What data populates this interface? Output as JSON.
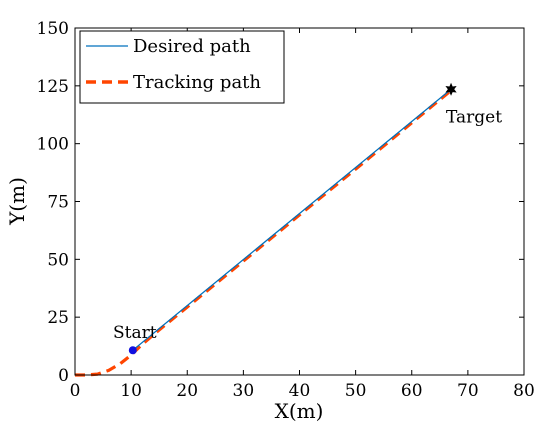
{
  "chart_data": {
    "type": "line",
    "xlabel": "X(m)",
    "ylabel": "Y(m)",
    "xlim": [
      0,
      80
    ],
    "ylim": [
      0,
      150
    ],
    "xticks": [
      0,
      10,
      20,
      30,
      40,
      50,
      60,
      70,
      80
    ],
    "yticks": [
      0,
      25,
      50,
      75,
      100,
      125,
      150
    ],
    "grid": false,
    "legend_position": "top-left",
    "series": [
      {
        "name": "Desired path",
        "style": "solid",
        "color": "#0072BD",
        "x": [
          10.3,
          67.0
        ],
        "y": [
          10.7,
          123.5
        ]
      },
      {
        "name": "Tracking path",
        "style": "dashed",
        "color": "#FF4500",
        "x": [
          0,
          2,
          4,
          6,
          8,
          10,
          12,
          15,
          20,
          30,
          40,
          50,
          60,
          67.0
        ],
        "y": [
          0,
          0,
          0.4,
          2.0,
          4.8,
          8.6,
          13.3,
          19.5,
          29.4,
          49.3,
          69.2,
          89.0,
          109.0,
          123.0
        ]
      }
    ],
    "annotations": [
      {
        "text": "Start",
        "x": 10.3,
        "y": 10.7,
        "marker": "circle",
        "color": "#1010E0"
      },
      {
        "text": "Target",
        "x": 67.0,
        "y": 123.5,
        "marker": "hexagram",
        "color": "#000000"
      }
    ]
  }
}
